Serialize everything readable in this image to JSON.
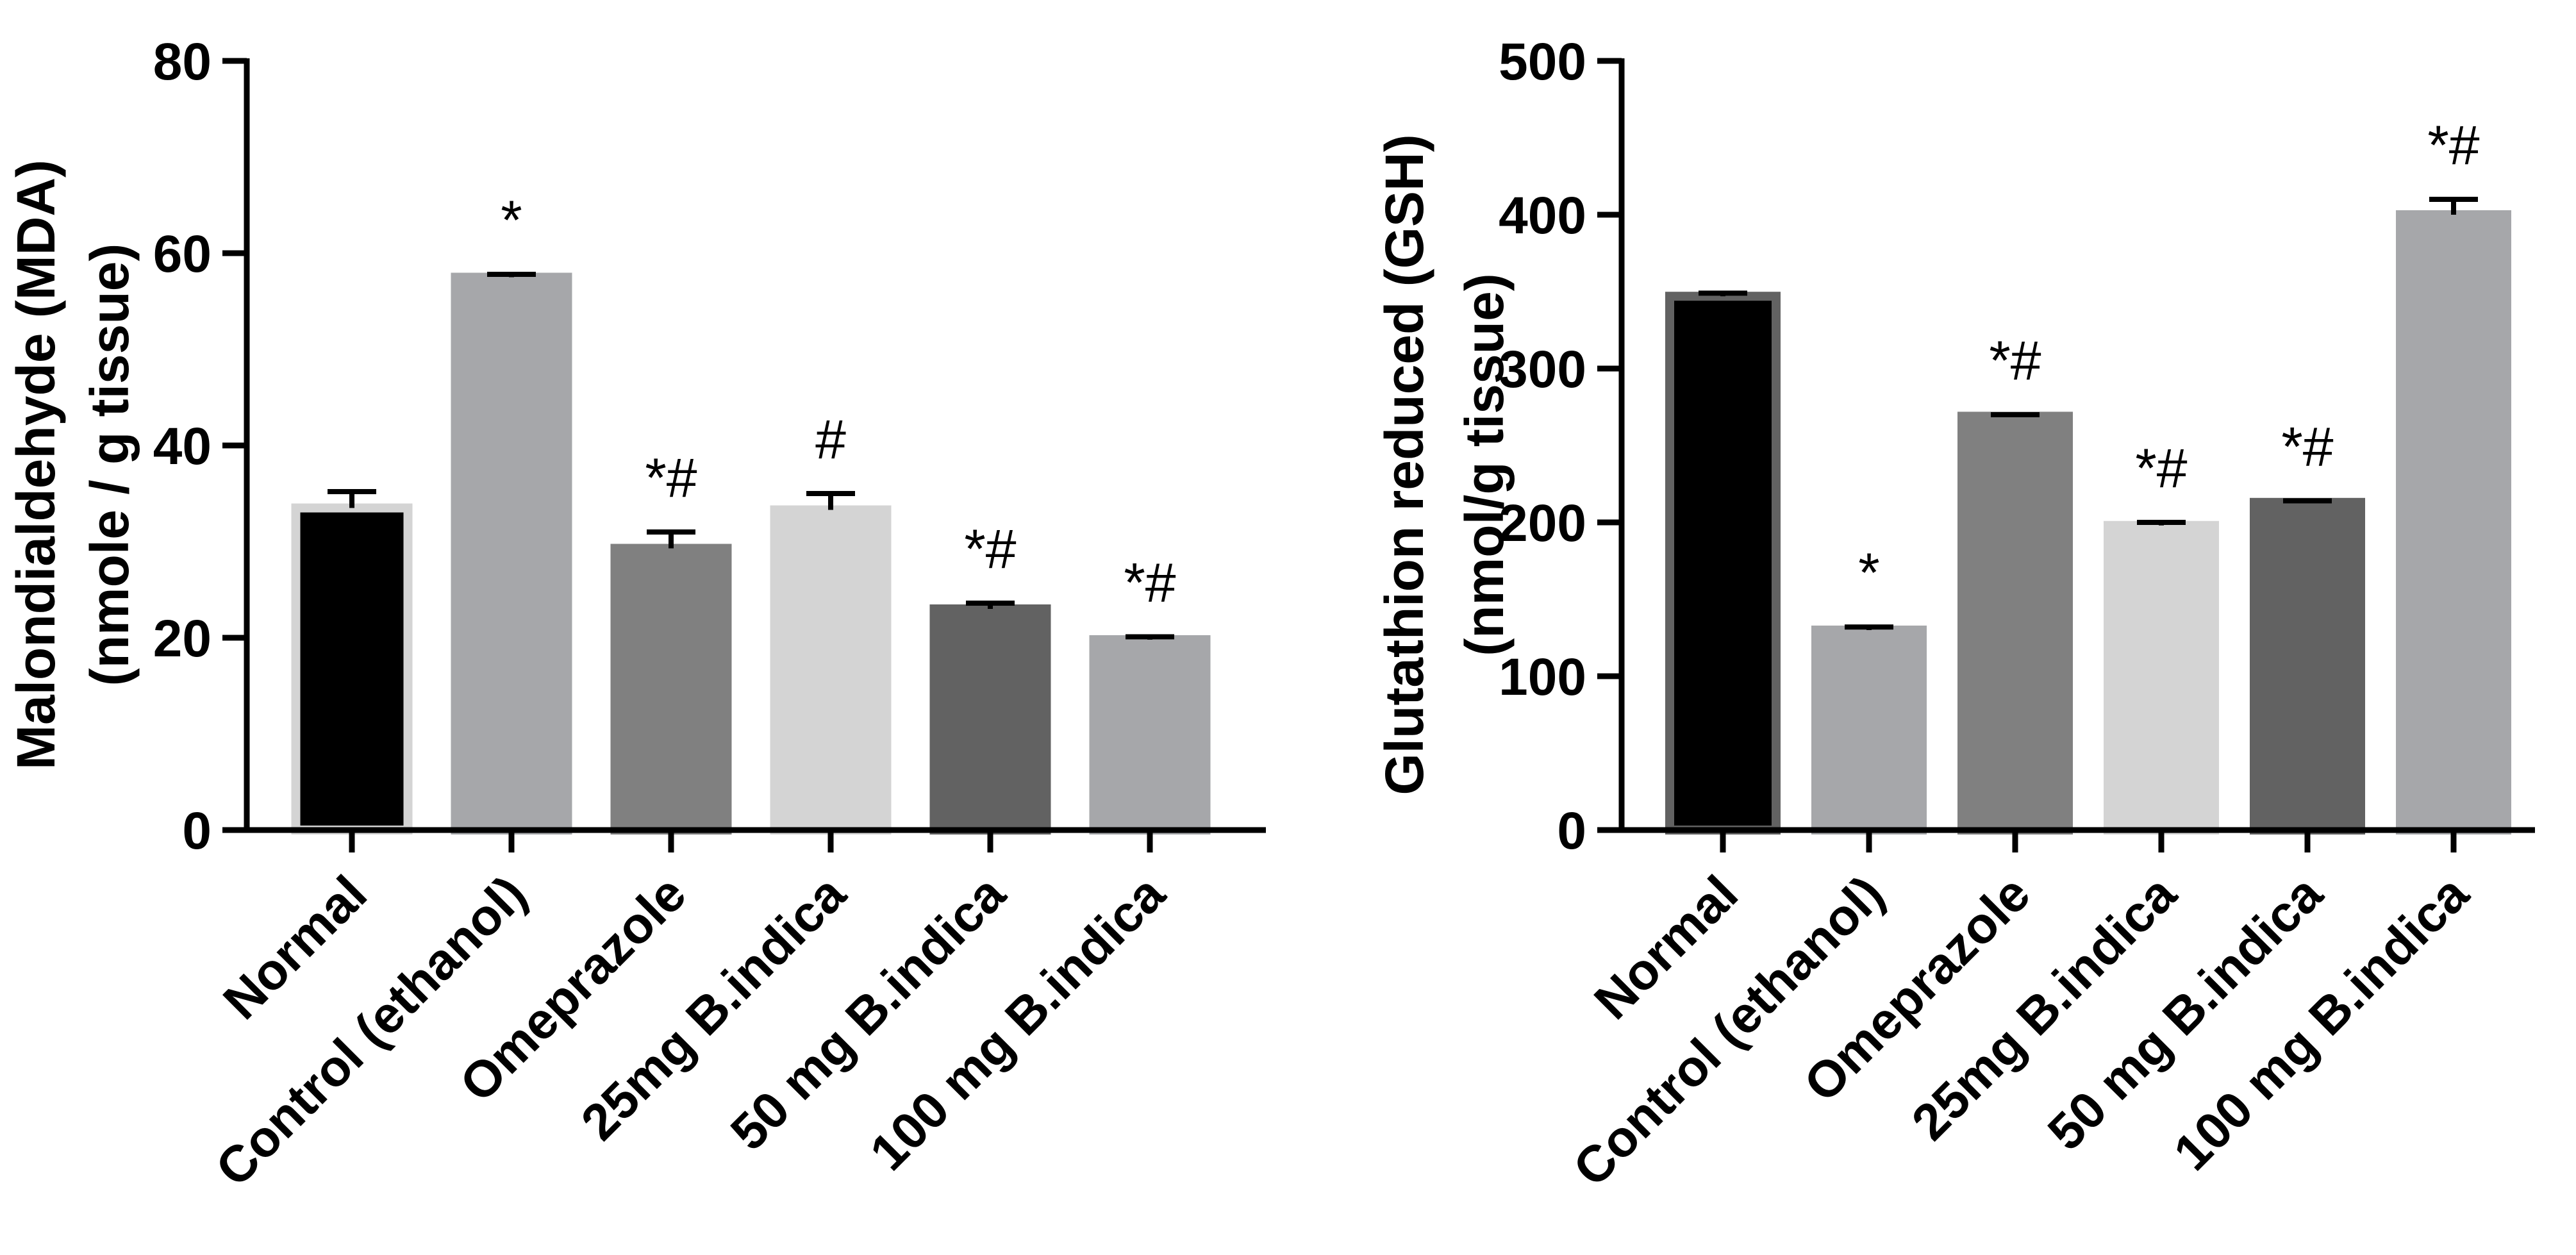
{
  "chart_data": [
    {
      "type": "bar",
      "title": "",
      "xlabel": "",
      "ylabel_lines": [
        "Malondialdehyde (MDA)",
        "(nmole / g tissue)"
      ],
      "ylim": [
        0,
        80
      ],
      "yticks": [
        0,
        20,
        40,
        60,
        80
      ],
      "categories": [
        "Normal",
        "Control (ethanol)",
        "Omeprazole",
        "25mg B.indica",
        "50 mg B.indica",
        "100 mg B.indica"
      ],
      "values": [
        33.5,
        57.5,
        29.3,
        33.3,
        23.0,
        19.8
      ],
      "errors": [
        1.7,
        0.3,
        1.7,
        1.7,
        0.6,
        0.3
      ],
      "significance": [
        "",
        "*",
        "*#",
        "#",
        "*#",
        "*#"
      ],
      "colors": [
        "#000000",
        "#a6a7aa",
        "#808080",
        "#d4d4d4",
        "#626262",
        "#a6a7aa"
      ],
      "edge_colors": [
        "#d4d4d4",
        "#a6a7aa",
        "#808080",
        "#d4d4d4",
        "#626262",
        "#a6a7aa"
      ]
    },
    {
      "type": "bar",
      "title": "",
      "xlabel": "",
      "ylabel_lines": [
        "Glutathion reduced (GSH)",
        "(nmol/g tissue)"
      ],
      "ylim": [
        0,
        500
      ],
      "yticks": [
        0,
        100,
        200,
        300,
        400,
        500
      ],
      "categories": [
        "Normal",
        "Control (ethanol)",
        "Omeprazole",
        "25mg B.indica",
        "50 mg B.indica",
        "100 mg B.indica"
      ],
      "values": [
        347,
        130,
        269,
        198,
        213,
        400
      ],
      "errors": [
        2,
        2,
        1,
        2,
        1,
        10
      ],
      "significance": [
        "",
        "*",
        "*#",
        "*#",
        "*#",
        "*#"
      ],
      "colors": [
        "#000000",
        "#a6a7aa",
        "#808080",
        "#d4d4d4",
        "#626262",
        "#a6a7aa"
      ],
      "edge_colors": [
        "#626262",
        "#a6a7aa",
        "#808080",
        "#d4d4d4",
        "#626262",
        "#a6a7aa"
      ]
    }
  ]
}
